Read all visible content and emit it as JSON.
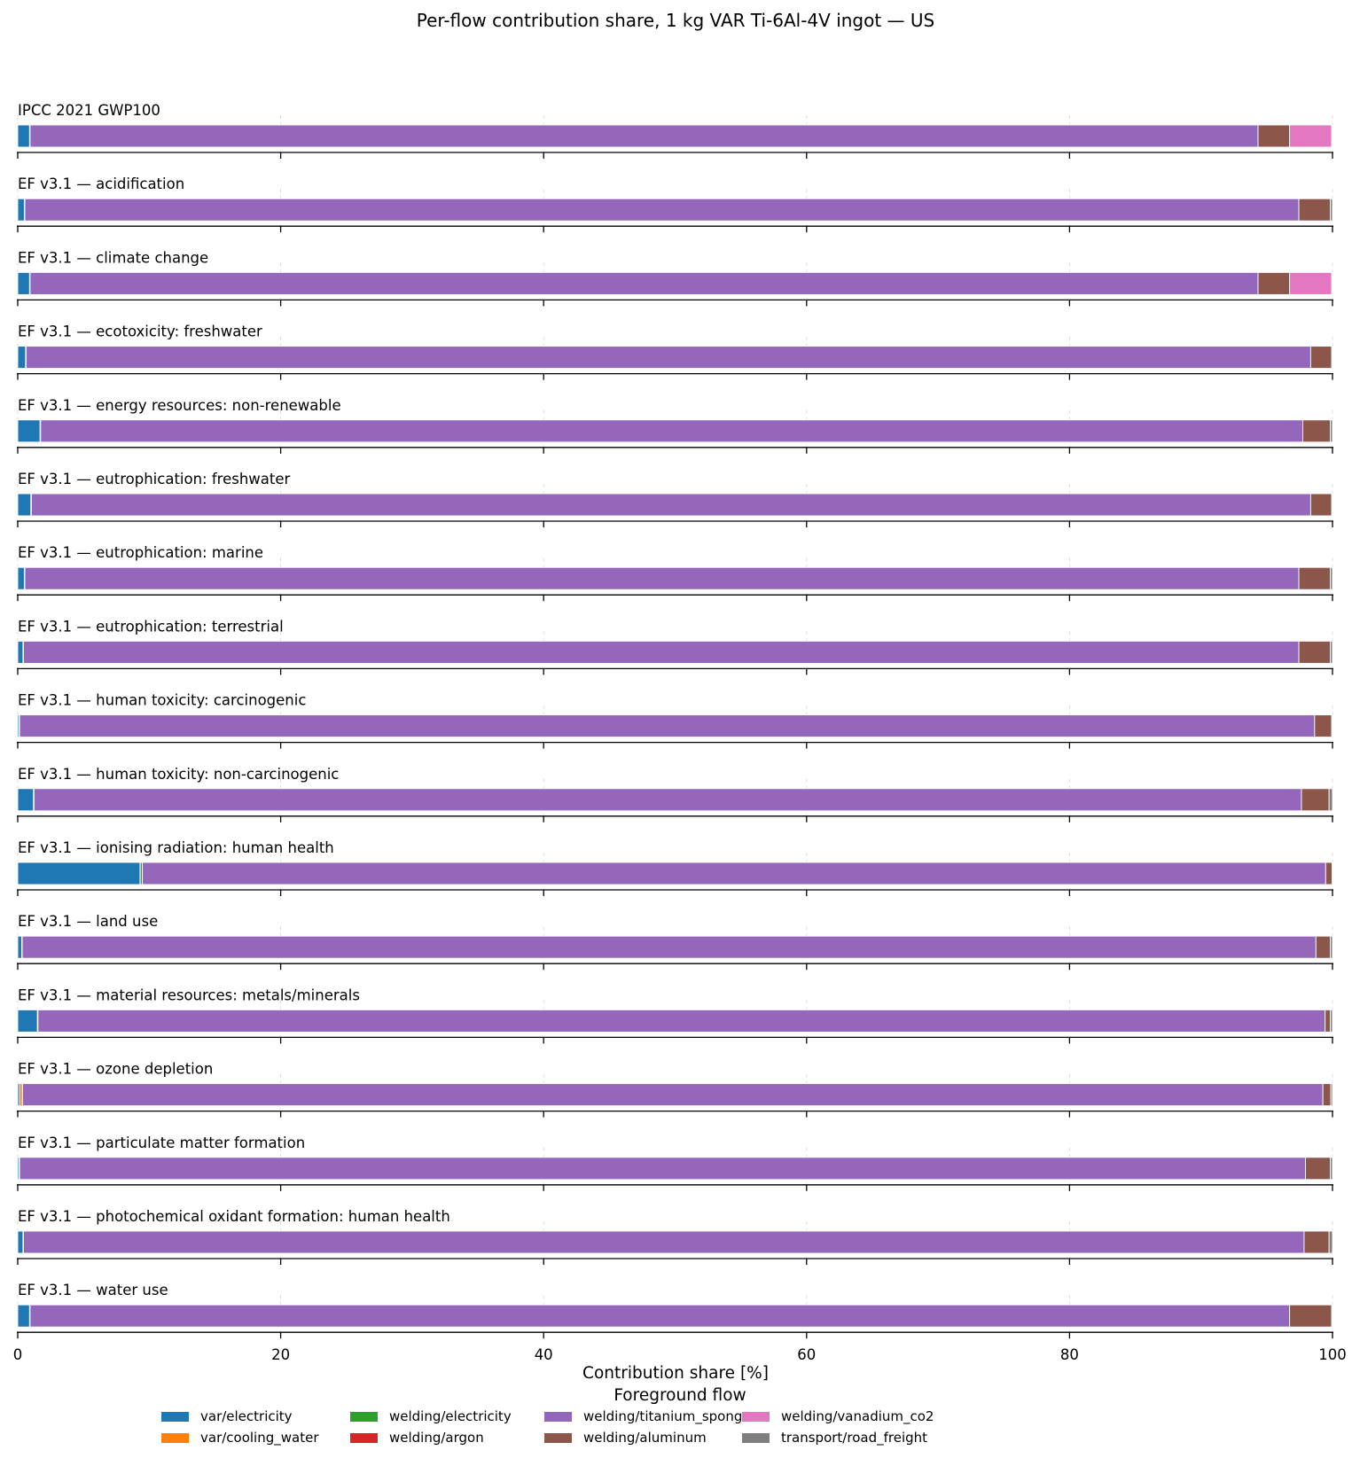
{
  "chart_data": {
    "type": "bar",
    "orientation": "horizontal",
    "stacked": true,
    "title": "Per-flow contribution share, 1 kg VAR Ti-6Al-4V ingot — US",
    "xlabel": "Contribution share [%]",
    "xlim": [
      0,
      100
    ],
    "x_ticks": [
      "0",
      "20",
      "40",
      "60",
      "80",
      "100"
    ],
    "grid": "vertical dashed",
    "legend": {
      "title": "Foreground flow",
      "placement": "bottom-center",
      "columns": 5
    },
    "series": [
      {
        "name": "var/electricity",
        "color": "#1f77b4"
      },
      {
        "name": "var/cooling_water",
        "color": "#ff7f0e"
      },
      {
        "name": "welding/electricity",
        "color": "#2ca02c"
      },
      {
        "name": "welding/argon",
        "color": "#d62728"
      },
      {
        "name": "welding/titanium_sponge",
        "color": "#9467bd"
      },
      {
        "name": "welding/aluminum",
        "color": "#8c564b"
      },
      {
        "name": "welding/vanadium_co2",
        "color": "#e377c2"
      },
      {
        "name": "transport/road_freight",
        "color": "#7f7f7f"
      }
    ],
    "panels": [
      {
        "category": "IPCC 2021 GWP100",
        "values": [
          0.9,
          0.02,
          0.01,
          0.01,
          93.4,
          2.4,
          3.2,
          0.06
        ]
      },
      {
        "category": "EF v3.1 — acidification",
        "values": [
          0.5,
          0.02,
          0.01,
          0.01,
          96.9,
          2.4,
          0.0,
          0.16
        ]
      },
      {
        "category": "EF v3.1 — climate change",
        "values": [
          0.9,
          0.02,
          0.01,
          0.01,
          93.4,
          2.4,
          3.2,
          0.06
        ]
      },
      {
        "category": "EF v3.1 — ecotoxicity: freshwater",
        "values": [
          0.6,
          0.02,
          0.01,
          0.01,
          97.7,
          1.6,
          0.0,
          0.06
        ]
      },
      {
        "category": "EF v3.1 — energy resources: non-renewable",
        "values": [
          1.7,
          0.02,
          0.01,
          0.01,
          96.0,
          2.1,
          0.0,
          0.16
        ]
      },
      {
        "category": "EF v3.1 — eutrophication: freshwater",
        "values": [
          1.0,
          0.02,
          0.01,
          0.01,
          97.3,
          1.6,
          0.0,
          0.06
        ]
      },
      {
        "category": "EF v3.1 — eutrophication: marine",
        "values": [
          0.5,
          0.02,
          0.01,
          0.01,
          96.9,
          2.4,
          0.0,
          0.16
        ]
      },
      {
        "category": "EF v3.1 — eutrophication: terrestrial",
        "values": [
          0.4,
          0.02,
          0.01,
          0.01,
          97.0,
          2.4,
          0.0,
          0.16
        ]
      },
      {
        "category": "EF v3.1 — human toxicity: carcinogenic",
        "values": [
          0.1,
          0.02,
          0.01,
          0.01,
          98.5,
          1.3,
          0.0,
          0.06
        ]
      },
      {
        "category": "EF v3.1 — human toxicity: non-carcinogenic",
        "values": [
          1.2,
          0.02,
          0.01,
          0.01,
          96.4,
          2.1,
          0.0,
          0.26
        ]
      },
      {
        "category": "EF v3.1 — ionising radiation: human health",
        "values": [
          9.3,
          0.02,
          0.15,
          0.01,
          90.0,
          0.5,
          0.0,
          0.02
        ]
      },
      {
        "category": "EF v3.1 — land use",
        "values": [
          0.3,
          0.02,
          0.01,
          0.01,
          98.4,
          1.1,
          0.0,
          0.16
        ]
      },
      {
        "category": "EF v3.1 — material resources: metals/minerals",
        "values": [
          1.5,
          0.02,
          0.01,
          0.01,
          97.9,
          0.4,
          0.0,
          0.16
        ]
      },
      {
        "category": "EF v3.1 — ozone depletion",
        "values": [
          0.15,
          0.2,
          0.01,
          0.01,
          98.9,
          0.6,
          0.0,
          0.13
        ]
      },
      {
        "category": "EF v3.1 — particulate matter formation",
        "values": [
          0.1,
          0.02,
          0.01,
          0.01,
          97.8,
          1.9,
          0.0,
          0.16
        ]
      },
      {
        "category": "EF v3.1 — photochemical oxidant formation: human health",
        "values": [
          0.4,
          0.02,
          0.01,
          0.01,
          97.4,
          1.9,
          0.0,
          0.26
        ]
      },
      {
        "category": "EF v3.1 — water use",
        "values": [
          0.9,
          0.02,
          0.01,
          0.01,
          95.8,
          3.2,
          0.0,
          0.06
        ]
      }
    ]
  }
}
